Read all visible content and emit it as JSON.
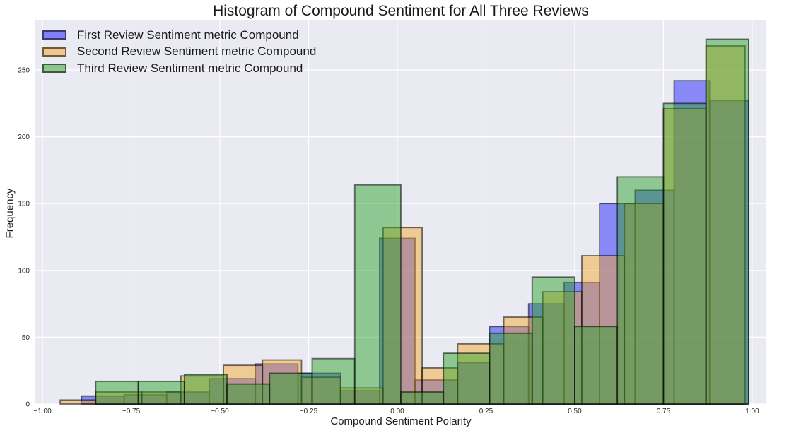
{
  "chart_data": {
    "type": "histogram",
    "title": "Histogram of Compound Sentiment for All Three Reviews",
    "xlabel": "Compound Sentiment Polarity",
    "ylabel": "Frequency",
    "xlim": [
      -1.02,
      1.04
    ],
    "ylim": [
      0,
      287
    ],
    "xticks": [
      "−1.00",
      "−0.75",
      "−0.50",
      "−0.25",
      "0.00",
      "0.25",
      "0.50",
      "0.75",
      "1.00"
    ],
    "yticks": [
      "0",
      "50",
      "100",
      "150",
      "200",
      "250"
    ],
    "grid": true,
    "legend_position": "top-left",
    "series": [
      {
        "name": "First Review Sentiment metric Compound",
        "color": "#0000ff",
        "bins": [
          {
            "x0": -0.89,
            "x1": -0.77,
            "count": 6
          },
          {
            "x0": -0.77,
            "x1": -0.65,
            "count": 7
          },
          {
            "x0": -0.65,
            "x1": -0.53,
            "count": 9
          },
          {
            "x0": -0.53,
            "x1": -0.4,
            "count": 19
          },
          {
            "x0": -0.4,
            "x1": -0.28,
            "count": 30
          },
          {
            "x0": -0.28,
            "x1": -0.16,
            "count": 23
          },
          {
            "x0": -0.16,
            "x1": -0.05,
            "count": 10
          },
          {
            "x0": -0.05,
            "x1": 0.05,
            "count": 124
          },
          {
            "x0": 0.05,
            "x1": 0.17,
            "count": 18
          },
          {
            "x0": 0.17,
            "x1": 0.26,
            "count": 31
          },
          {
            "x0": 0.26,
            "x1": 0.37,
            "count": 58
          },
          {
            "x0": 0.37,
            "x1": 0.47,
            "count": 75
          },
          {
            "x0": 0.47,
            "x1": 0.57,
            "count": 91
          },
          {
            "x0": 0.57,
            "x1": 0.67,
            "count": 150
          },
          {
            "x0": 0.67,
            "x1": 0.78,
            "count": 160
          },
          {
            "x0": 0.78,
            "x1": 0.88,
            "count": 242
          },
          {
            "x0": 0.88,
            "x1": 0.99,
            "count": 227
          }
        ]
      },
      {
        "name": "Second Review Sentiment metric Compound",
        "color": "#f5a623",
        "bins": [
          {
            "x0": -0.95,
            "x1": -0.85,
            "count": 3
          },
          {
            "x0": -0.85,
            "x1": -0.72,
            "count": 9
          },
          {
            "x0": -0.72,
            "x1": -0.61,
            "count": 9
          },
          {
            "x0": -0.61,
            "x1": -0.49,
            "count": 21
          },
          {
            "x0": -0.49,
            "x1": -0.38,
            "count": 29
          },
          {
            "x0": -0.38,
            "x1": -0.27,
            "count": 33
          },
          {
            "x0": -0.27,
            "x1": -0.16,
            "count": 20
          },
          {
            "x0": -0.16,
            "x1": -0.04,
            "count": 12
          },
          {
            "x0": -0.04,
            "x1": 0.07,
            "count": 132
          },
          {
            "x0": 0.07,
            "x1": 0.17,
            "count": 27
          },
          {
            "x0": 0.17,
            "x1": 0.3,
            "count": 45
          },
          {
            "x0": 0.3,
            "x1": 0.41,
            "count": 65
          },
          {
            "x0": 0.41,
            "x1": 0.52,
            "count": 84
          },
          {
            "x0": 0.52,
            "x1": 0.64,
            "count": 111
          },
          {
            "x0": 0.64,
            "x1": 0.75,
            "count": 150
          },
          {
            "x0": 0.75,
            "x1": 0.87,
            "count": 221
          },
          {
            "x0": 0.87,
            "x1": 0.98,
            "count": 268
          }
        ]
      },
      {
        "name": "Third Review Sentiment metric Compound",
        "color": "#2ca02c",
        "bins": [
          {
            "x0": -0.85,
            "x1": -0.73,
            "count": 17
          },
          {
            "x0": -0.73,
            "x1": -0.6,
            "count": 17
          },
          {
            "x0": -0.6,
            "x1": -0.48,
            "count": 22
          },
          {
            "x0": -0.48,
            "x1": -0.36,
            "count": 15
          },
          {
            "x0": -0.36,
            "x1": -0.24,
            "count": 23
          },
          {
            "x0": -0.24,
            "x1": -0.12,
            "count": 34
          },
          {
            "x0": -0.12,
            "x1": 0.01,
            "count": 164
          },
          {
            "x0": 0.01,
            "x1": 0.13,
            "count": 9
          },
          {
            "x0": 0.13,
            "x1": 0.26,
            "count": 38
          },
          {
            "x0": 0.26,
            "x1": 0.38,
            "count": 53
          },
          {
            "x0": 0.38,
            "x1": 0.5,
            "count": 95
          },
          {
            "x0": 0.5,
            "x1": 0.62,
            "count": 58
          },
          {
            "x0": 0.62,
            "x1": 0.75,
            "count": 170
          },
          {
            "x0": 0.75,
            "x1": 0.87,
            "count": 225
          },
          {
            "x0": 0.87,
            "x1": 0.99,
            "count": 273
          }
        ]
      }
    ]
  }
}
